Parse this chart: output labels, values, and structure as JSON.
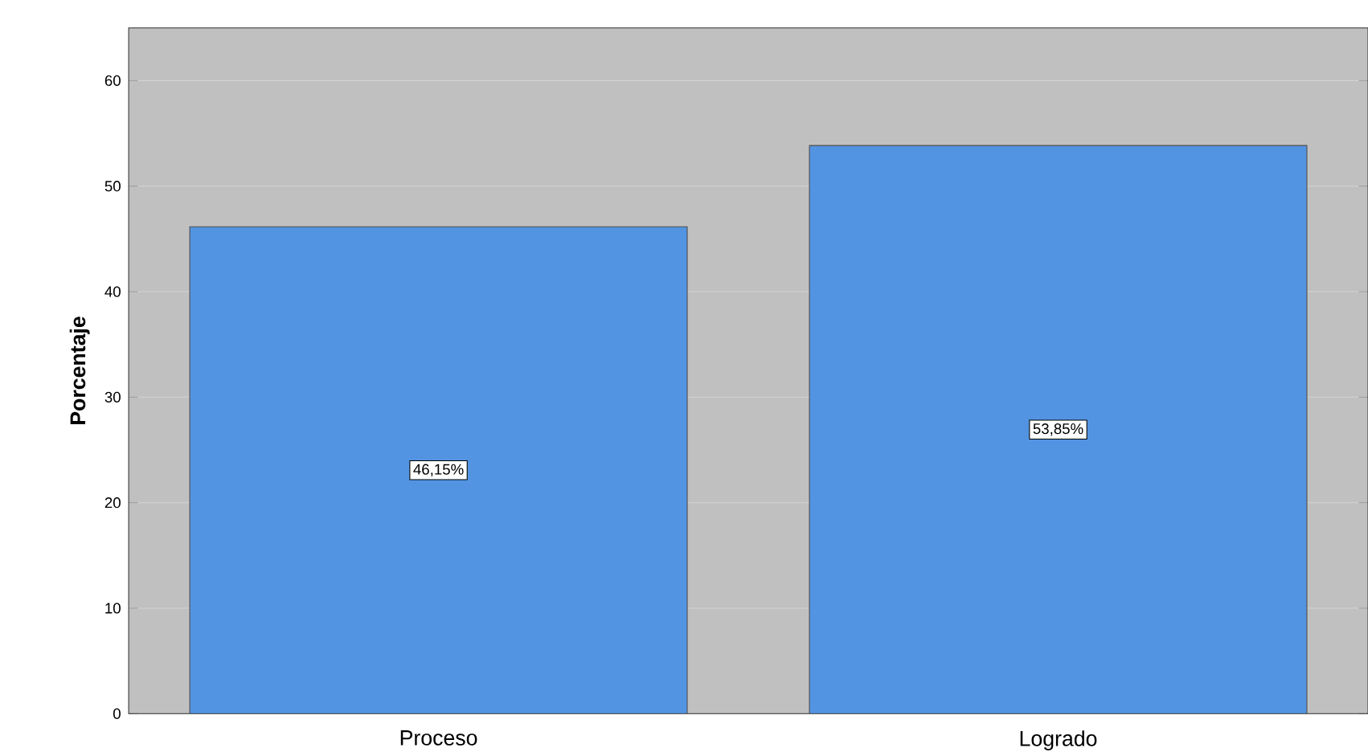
{
  "chart_data": {
    "type": "bar",
    "ylabel": "Porcentaje",
    "categories": [
      "Proceso",
      "Logrado"
    ],
    "values": [
      46.15,
      53.85
    ],
    "value_labels": [
      "46,15%",
      "53,85%"
    ],
    "color": "#5294e2",
    "ylim": [
      0,
      65
    ],
    "yticks": [
      0,
      10,
      20,
      30,
      40,
      50,
      60
    ],
    "grid": "y"
  }
}
